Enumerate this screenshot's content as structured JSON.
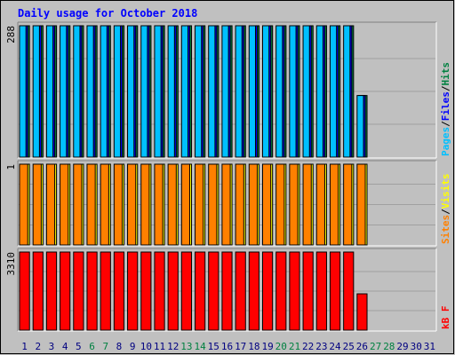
{
  "chart_data": {
    "type": "bar",
    "title": "Daily usage for October 2018",
    "categories": [
      "1",
      "2",
      "3",
      "4",
      "5",
      "6",
      "7",
      "8",
      "9",
      "10",
      "11",
      "12",
      "13",
      "14",
      "15",
      "16",
      "17",
      "18",
      "19",
      "20",
      "21",
      "22",
      "23",
      "24",
      "25",
      "26",
      "27",
      "28",
      "29",
      "30",
      "31"
    ],
    "weekend_days": [
      "6",
      "7",
      "13",
      "14",
      "20",
      "21",
      "27",
      "28"
    ],
    "panels": [
      {
        "name": "pages-files-hits",
        "ymax_label": "288",
        "ymax": 288,
        "legend": [
          {
            "text": "Pages",
            "color": "#00c0ff"
          },
          {
            "text": "/",
            "color": "#000000"
          },
          {
            "text": "Files",
            "color": "#0000ff"
          },
          {
            "text": "/",
            "color": "#000000"
          },
          {
            "text": "Hits",
            "color": "#008040"
          }
        ],
        "series": [
          {
            "name": "Hits",
            "color": "#008040",
            "values": [
              288,
              288,
              288,
              288,
              288,
              288,
              288,
              288,
              288,
              288,
              288,
              288,
              288,
              288,
              288,
              288,
              288,
              288,
              288,
              288,
              288,
              288,
              288,
              288,
              288,
              135,
              0,
              0,
              0,
              0,
              0
            ]
          },
          {
            "name": "Files",
            "color": "#0000ff",
            "values": [
              288,
              288,
              288,
              288,
              288,
              288,
              288,
              288,
              288,
              288,
              288,
              288,
              288,
              288,
              288,
              288,
              288,
              288,
              288,
              288,
              288,
              288,
              288,
              288,
              288,
              135,
              0,
              0,
              0,
              0,
              0
            ]
          },
          {
            "name": "Pages",
            "color": "#00c0ff",
            "values": [
              288,
              288,
              288,
              288,
              288,
              288,
              288,
              288,
              288,
              288,
              288,
              288,
              288,
              288,
              288,
              288,
              288,
              288,
              288,
              288,
              288,
              288,
              288,
              288,
              288,
              135,
              0,
              0,
              0,
              0,
              0
            ]
          }
        ]
      },
      {
        "name": "sites-visits",
        "ymax_label": "1",
        "ymax": 1,
        "legend": [
          {
            "text": "Sites",
            "color": "#ff8000"
          },
          {
            "text": "/",
            "color": "#000000"
          },
          {
            "text": "Visits",
            "color": "#ffff00"
          }
        ],
        "series": [
          {
            "name": "Visits",
            "color": "#ffff00",
            "values": [
              1,
              1,
              1,
              1,
              1,
              1,
              1,
              1,
              1,
              1,
              1,
              1,
              1,
              1,
              1,
              1,
              1,
              1,
              1,
              1,
              1,
              1,
              1,
              1,
              1,
              1,
              0,
              0,
              0,
              0,
              0
            ]
          },
          {
            "name": "Sites",
            "color": "#ff8000",
            "values": [
              1,
              1,
              1,
              1,
              1,
              1,
              1,
              1,
              1,
              1,
              1,
              1,
              1,
              1,
              1,
              1,
              1,
              1,
              1,
              1,
              1,
              1,
              1,
              1,
              1,
              1,
              0,
              0,
              0,
              0,
              0
            ]
          }
        ]
      },
      {
        "name": "kbytes",
        "ymax_label": "3310",
        "ymax": 3310,
        "legend": [
          {
            "text": "kB F",
            "color": "#ff0000"
          }
        ],
        "series": [
          {
            "name": "kB F",
            "color": "#ff0000",
            "values": [
              3310,
              3310,
              3310,
              3310,
              3310,
              3310,
              3310,
              3310,
              3310,
              3310,
              3310,
              3310,
              3310,
              3310,
              3310,
              3310,
              3310,
              3310,
              3310,
              3310,
              3310,
              3310,
              3310,
              3310,
              3310,
              1540,
              0,
              0,
              0,
              0,
              0
            ]
          }
        ]
      }
    ],
    "colors": {
      "title": "#0000ff",
      "background": "#c0c0c0",
      "weekday_label": "#000080",
      "weekend_label": "#008040"
    }
  }
}
